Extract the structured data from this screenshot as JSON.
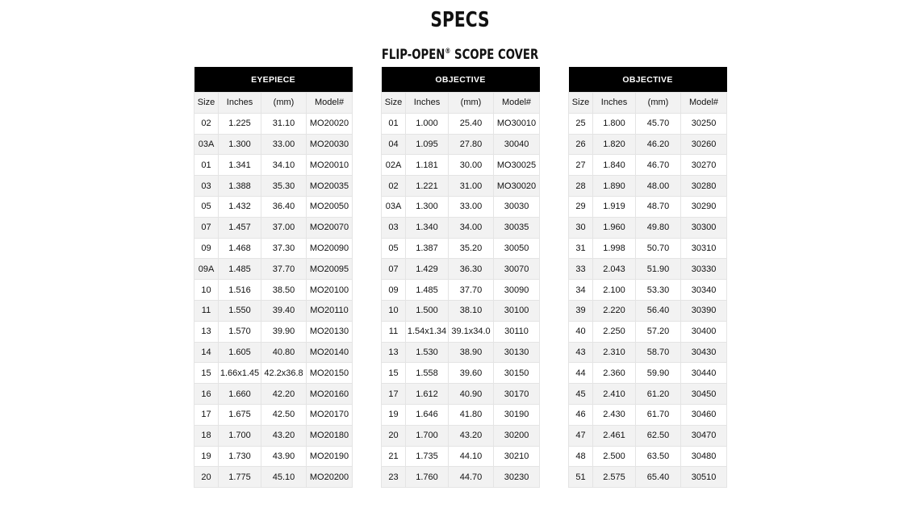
{
  "title": "SPECS",
  "subtitle": "FLIP-OPEN",
  "subtitle_mark": "®",
  "subtitle_rest": " SCOPE COVER",
  "columns": [
    "Size",
    "Inches",
    "(mm)",
    "Model#"
  ],
  "tables": [
    {
      "heading": "EYEPIECE",
      "rows": [
        [
          "02",
          "1.225",
          "31.10",
          "MO20020"
        ],
        [
          "03A",
          "1.300",
          "33.00",
          "MO20030"
        ],
        [
          "01",
          "1.341",
          "34.10",
          "MO20010"
        ],
        [
          "03",
          "1.388",
          "35.30",
          "MO20035"
        ],
        [
          "05",
          "1.432",
          "36.40",
          "MO20050"
        ],
        [
          "07",
          "1.457",
          "37.00",
          "MO20070"
        ],
        [
          "09",
          "1.468",
          "37.30",
          "MO20090"
        ],
        [
          "09A",
          "1.485",
          "37.70",
          "MO20095"
        ],
        [
          "10",
          "1.516",
          "38.50",
          "MO20100"
        ],
        [
          "11",
          "1.550",
          "39.40",
          "MO20110"
        ],
        [
          "13",
          "1.570",
          "39.90",
          "MO20130"
        ],
        [
          "14",
          "1.605",
          "40.80",
          "MO20140"
        ],
        [
          "15",
          "1.66x1.45",
          "42.2x36.8",
          "MO20150"
        ],
        [
          "16",
          "1.660",
          "42.20",
          "MO20160"
        ],
        [
          "17",
          "1.675",
          "42.50",
          "MO20170"
        ],
        [
          "18",
          "1.700",
          "43.20",
          "MO20180"
        ],
        [
          "19",
          "1.730",
          "43.90",
          "MO20190"
        ],
        [
          "20",
          "1.775",
          "45.10",
          "MO20200"
        ]
      ]
    },
    {
      "heading": "OBJECTIVE",
      "rows": [
        [
          "01",
          "1.000",
          "25.40",
          "MO30010"
        ],
        [
          "04",
          "1.095",
          "27.80",
          "30040"
        ],
        [
          "02A",
          "1.181",
          "30.00",
          "MO30025"
        ],
        [
          "02",
          "1.221",
          "31.00",
          "MO30020"
        ],
        [
          "03A",
          "1.300",
          "33.00",
          "30030"
        ],
        [
          "03",
          "1.340",
          "34.00",
          "30035"
        ],
        [
          "05",
          "1.387",
          "35.20",
          "30050"
        ],
        [
          "07",
          "1.429",
          "36.30",
          "30070"
        ],
        [
          "09",
          "1.485",
          "37.70",
          "30090"
        ],
        [
          "10",
          "1.500",
          "38.10",
          "30100"
        ],
        [
          "11",
          "1.54x1.34",
          "39.1x34.0",
          "30110"
        ],
        [
          "13",
          "1.530",
          "38.90",
          "30130"
        ],
        [
          "15",
          "1.558",
          "39.60",
          "30150"
        ],
        [
          "17",
          "1.612",
          "40.90",
          "30170"
        ],
        [
          "19",
          "1.646",
          "41.80",
          "30190"
        ],
        [
          "20",
          "1.700",
          "43.20",
          "30200"
        ],
        [
          "21",
          "1.735",
          "44.10",
          "30210"
        ],
        [
          "23",
          "1.760",
          "44.70",
          "30230"
        ]
      ]
    },
    {
      "heading": "OBJECTIVE",
      "rows": [
        [
          "25",
          "1.800",
          "45.70",
          "30250"
        ],
        [
          "26",
          "1.820",
          "46.20",
          "30260"
        ],
        [
          "27",
          "1.840",
          "46.70",
          "30270"
        ],
        [
          "28",
          "1.890",
          "48.00",
          "30280"
        ],
        [
          "29",
          "1.919",
          "48.70",
          "30290"
        ],
        [
          "30",
          "1.960",
          "49.80",
          "30300"
        ],
        [
          "31",
          "1.998",
          "50.70",
          "30310"
        ],
        [
          "33",
          "2.043",
          "51.90",
          "30330"
        ],
        [
          "34",
          "2.100",
          "53.30",
          "30340"
        ],
        [
          "39",
          "2.220",
          "56.40",
          "30390"
        ],
        [
          "40",
          "2.250",
          "57.20",
          "30400"
        ],
        [
          "43",
          "2.310",
          "58.70",
          "30430"
        ],
        [
          "44",
          "2.360",
          "59.90",
          "30440"
        ],
        [
          "45",
          "2.410",
          "61.20",
          "30450"
        ],
        [
          "46",
          "2.430",
          "61.70",
          "30460"
        ],
        [
          "47",
          "2.461",
          "62.50",
          "30470"
        ],
        [
          "48",
          "2.500",
          "63.50",
          "30480"
        ],
        [
          "51",
          "2.575",
          "65.40",
          "30510"
        ]
      ]
    }
  ]
}
